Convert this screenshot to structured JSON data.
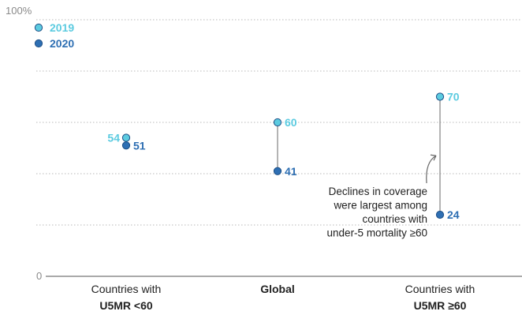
{
  "chart_data": {
    "type": "scatter",
    "title": "",
    "xlabel": "",
    "ylabel": "",
    "ylim": [
      0,
      100
    ],
    "y_tick_labels": {
      "top": "100%",
      "bottom": "0"
    },
    "grid": true,
    "legend_position": "top-left",
    "categories": [
      {
        "line1": "Countries with",
        "line2": "U5MR <60",
        "bold_all": false
      },
      {
        "line1": "Global",
        "line2": "",
        "bold_all": true
      },
      {
        "line1": "Countries with",
        "line2": "U5MR ≥60",
        "bold_all": false
      }
    ],
    "series": [
      {
        "name": "2019",
        "color": "#5ccbe0",
        "values": [
          54,
          60,
          70
        ],
        "labels": [
          "54",
          "60",
          "70"
        ]
      },
      {
        "name": "2020",
        "color": "#2e6fb3",
        "values": [
          51,
          41,
          24
        ],
        "labels": [
          "51",
          "41",
          "24"
        ]
      }
    ],
    "annotation": {
      "lines": [
        "Declines in coverage",
        "were largest among",
        "countries with",
        "under-5 mortality ≥60"
      ],
      "category_index": 2
    }
  }
}
